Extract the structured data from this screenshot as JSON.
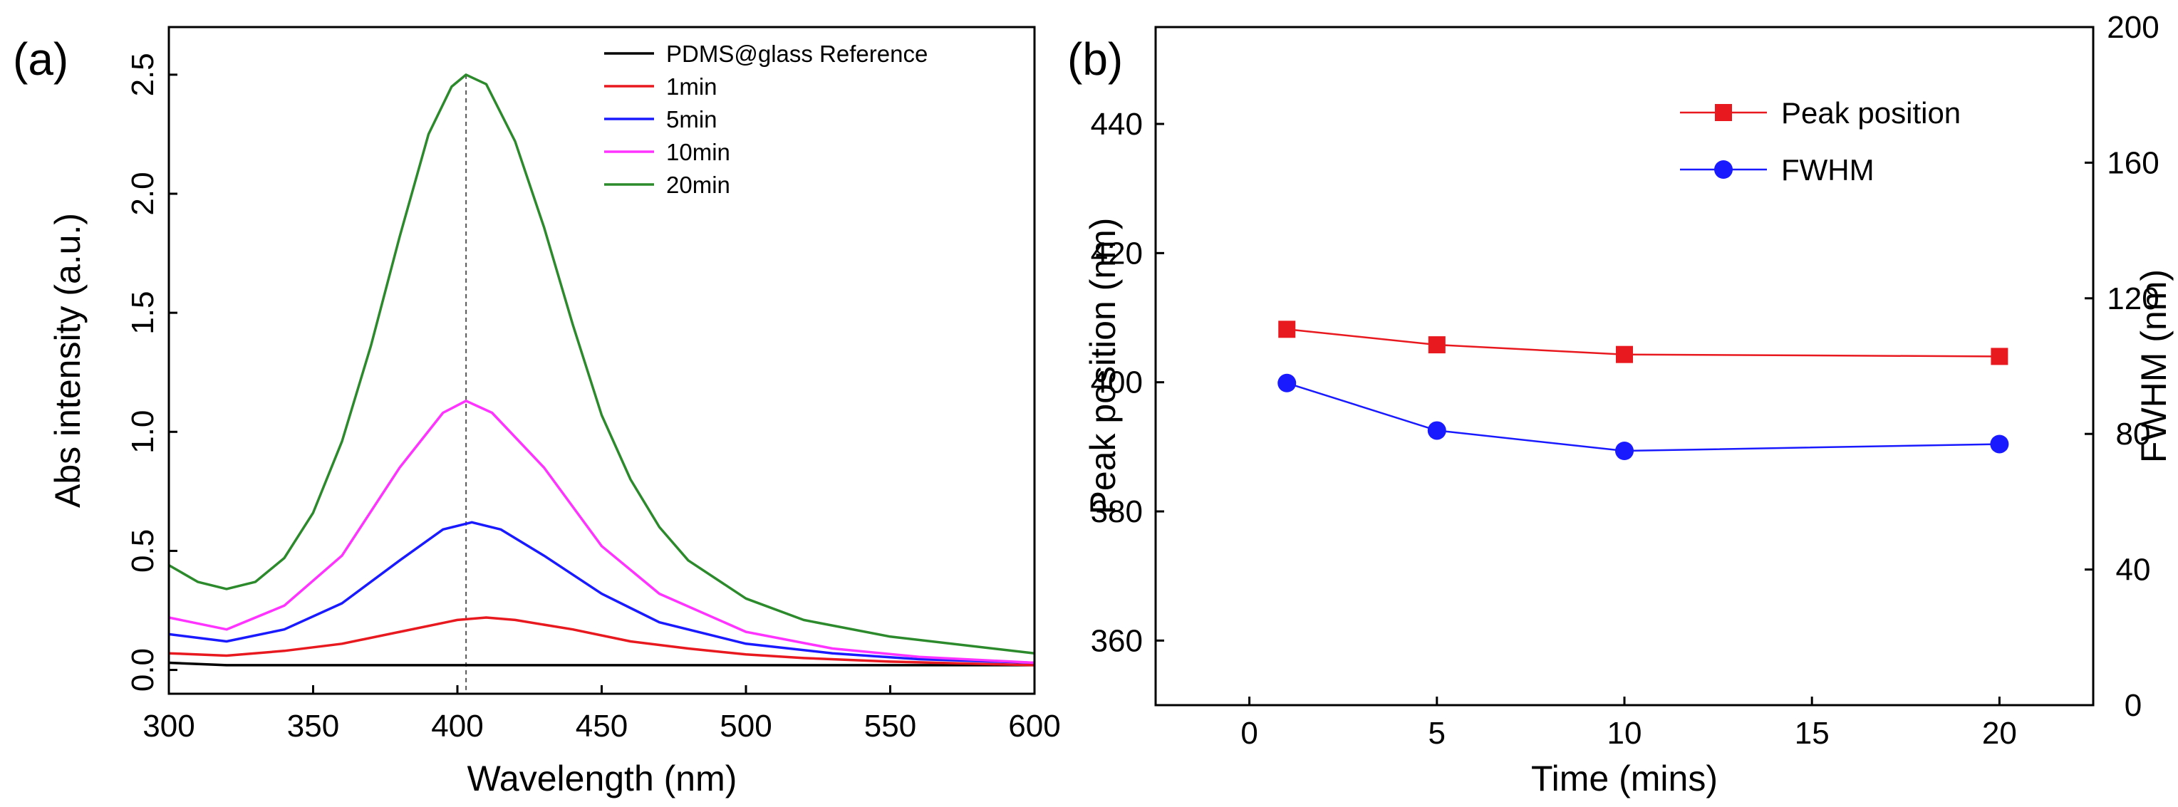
{
  "chart_data": [
    {
      "type": "line",
      "panel_label": "(a)",
      "xlabel": "Wavelength (nm)",
      "ylabel": "Abs intensity (a.u.)",
      "xlim": [
        300,
        600
      ],
      "ylim": [
        -0.1,
        2.7
      ],
      "x_ticks": [
        "300",
        "350",
        "400",
        "450",
        "500",
        "550",
        "600"
      ],
      "y_ticks": [
        "0.0",
        "0.5",
        "1.0",
        "1.5",
        "2.0",
        "2.5"
      ],
      "reference_line": {
        "x": 403,
        "style": "dashed"
      },
      "legend_position": "top-right",
      "series": [
        {
          "name": "PDMS@glass Reference",
          "color": "#000000",
          "x": [
            300,
            320,
            350,
            400,
            450,
            500,
            550,
            600
          ],
          "y": [
            0.03,
            0.02,
            0.02,
            0.02,
            0.02,
            0.02,
            0.02,
            0.02
          ]
        },
        {
          "name": "1min",
          "color": "#e8191f",
          "x": [
            300,
            320,
            340,
            360,
            380,
            400,
            410,
            420,
            440,
            460,
            480,
            500,
            520,
            550,
            600
          ],
          "y": [
            0.07,
            0.06,
            0.08,
            0.11,
            0.16,
            0.21,
            0.22,
            0.21,
            0.17,
            0.12,
            0.09,
            0.065,
            0.05,
            0.035,
            0.02
          ]
        },
        {
          "name": "5min",
          "color": "#1a1aff",
          "x": [
            300,
            320,
            340,
            360,
            380,
            395,
            405,
            415,
            430,
            450,
            470,
            500,
            530,
            560,
            600
          ],
          "y": [
            0.15,
            0.12,
            0.17,
            0.28,
            0.46,
            0.59,
            0.62,
            0.59,
            0.48,
            0.32,
            0.2,
            0.11,
            0.07,
            0.045,
            0.03
          ]
        },
        {
          "name": "10min",
          "color": "#ff33ff",
          "x": [
            300,
            320,
            340,
            360,
            380,
            395,
            403,
            412,
            430,
            450,
            470,
            500,
            530,
            560,
            600
          ],
          "y": [
            0.22,
            0.17,
            0.27,
            0.48,
            0.85,
            1.08,
            1.13,
            1.08,
            0.85,
            0.52,
            0.32,
            0.16,
            0.09,
            0.055,
            0.03
          ]
        },
        {
          "name": "20min",
          "color": "#2c8a2c",
          "x": [
            300,
            310,
            320,
            330,
            340,
            350,
            360,
            370,
            380,
            390,
            398,
            403,
            410,
            420,
            430,
            440,
            450,
            460,
            470,
            480,
            500,
            520,
            550,
            600
          ],
          "y": [
            0.44,
            0.37,
            0.34,
            0.37,
            0.47,
            0.66,
            0.96,
            1.36,
            1.82,
            2.25,
            2.45,
            2.5,
            2.46,
            2.22,
            1.86,
            1.45,
            1.07,
            0.8,
            0.6,
            0.46,
            0.3,
            0.21,
            0.14,
            0.07
          ]
        }
      ]
    },
    {
      "type": "line",
      "panel_label": "(b)",
      "xlabel": "Time (mins)",
      "ylabel": "Peak position (nm)",
      "ylabel_right": "FWHM (nm)",
      "xlim": [
        -2.5,
        22.5
      ],
      "ylim": [
        350,
        455
      ],
      "ylim_right": [
        0,
        200
      ],
      "x_ticks": [
        "0",
        "5",
        "10",
        "15",
        "20"
      ],
      "y_ticks": [
        "360",
        "380",
        "400",
        "420",
        "440"
      ],
      "y_ticks_right": [
        "0",
        "40",
        "80",
        "120",
        "160",
        "200"
      ],
      "legend_position": "top-right",
      "series": [
        {
          "name": "Peak position",
          "axis": "left",
          "marker": "square",
          "color": "#e8191f",
          "x": [
            1,
            5,
            10,
            20
          ],
          "y": [
            408.2,
            405.8,
            404.3,
            404.0
          ]
        },
        {
          "name": "FWHM",
          "axis": "right",
          "marker": "circle",
          "color": "#1a1aff",
          "x": [
            1,
            5,
            10,
            20
          ],
          "y": [
            95,
            81,
            75,
            77
          ]
        }
      ]
    }
  ]
}
